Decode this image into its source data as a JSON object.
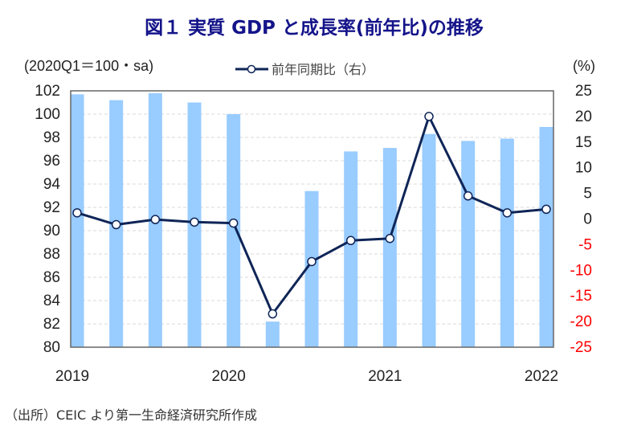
{
  "chart_data": {
    "type": "bar+line",
    "title": "図１ 実質 GDP と成長率(前年比)の推移",
    "left_axis_label": "(2020Q1＝100・sa)",
    "right_axis_label": "(%)",
    "categories": [
      "2019Q1",
      "2019Q2",
      "2019Q3",
      "2019Q4",
      "2020Q1",
      "2020Q2",
      "2020Q3",
      "2020Q4",
      "2021Q1",
      "2021Q2",
      "2021Q3",
      "2021Q4",
      "2022Q1"
    ],
    "x_tick_labels": [
      "2019",
      "2020",
      "2021",
      "2022"
    ],
    "left_ylim": [
      80,
      102
    ],
    "left_ticks": [
      80,
      82,
      84,
      86,
      88,
      90,
      92,
      94,
      96,
      98,
      100,
      102
    ],
    "right_ylim": [
      -25,
      25
    ],
    "right_ticks": [
      25,
      20,
      15,
      10,
      5,
      0,
      -5,
      -10,
      -15,
      -20,
      -25
    ],
    "grid": true,
    "series": [
      {
        "type": "bar",
        "axis": "left",
        "color": "#99ccff",
        "values": [
          101.7,
          101.2,
          101.8,
          101.0,
          100.0,
          82.2,
          93.4,
          96.8,
          97.1,
          98.3,
          97.7,
          97.9,
          98.9
        ]
      },
      {
        "type": "line",
        "axis": "right",
        "name": "前年同期比（右）",
        "color": "#0f2557",
        "values": [
          1.2,
          -1.1,
          -0.1,
          -0.6,
          -0.8,
          -18.5,
          -8.3,
          -4.2,
          -3.8,
          20.0,
          4.5,
          1.2,
          1.9
        ]
      }
    ],
    "negative_tick_color": "#ff0000",
    "legend_position": "top-center"
  },
  "source": "（出所）CEIC より第一生命経済研究所作成"
}
